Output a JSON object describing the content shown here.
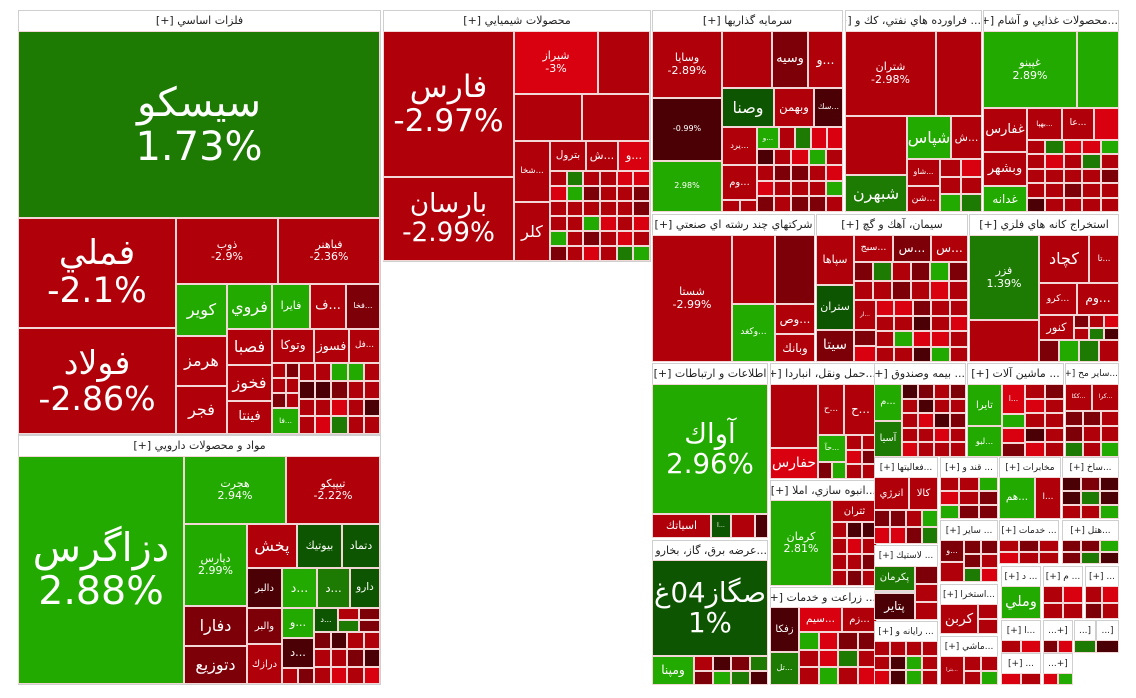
{
  "colors": {
    "r": "#b0000a",
    "R": "#d9000f",
    "d": "#7d0008",
    "v": "#4a0004",
    "g": "#22aa00",
    "G": "#1d7b04",
    "D": "#0d5500"
  },
  "sectors": [
    {
      "title": "فلزات اساسي [+]",
      "tiles": [
        {
          "n": "سيسكو",
          "c": "1.73%",
          "k": "G"
        },
        {
          "n": "فملي",
          "c": "-2.1%",
          "k": "r"
        },
        {
          "n": "فولاد",
          "c": "-2.86%",
          "k": "r"
        },
        {
          "n": "ذوب",
          "c": "-2.9%",
          "k": "r"
        },
        {
          "n": "فباهنر",
          "c": "-2.36%",
          "k": "r"
        },
        {
          "n": "كوير",
          "k": "g"
        },
        {
          "n": "فروي",
          "k": "g"
        },
        {
          "n": "فايرا",
          "k": "g"
        },
        {
          "n": "...ف",
          "k": "r"
        },
        {
          "n": "...فخا",
          "k": "d"
        },
        {
          "n": "هرمز",
          "k": "r"
        },
        {
          "n": "فجر",
          "k": "r"
        },
        {
          "n": "فصبا",
          "k": "r"
        },
        {
          "n": "فخوز",
          "k": "r"
        },
        {
          "n": "فينتا",
          "k": "r"
        },
        {
          "n": "وتوكا",
          "k": "r"
        },
        {
          "n": "فسوز",
          "k": "r"
        },
        {
          "n": "...فل",
          "k": "r"
        },
        {
          "n": "...فا",
          "k": "g"
        }
      ]
    },
    {
      "title": "مواد و محصولات دارويي [+]",
      "tiles": [
        {
          "n": "دزاگرس",
          "c": "2.88%",
          "k": "g"
        },
        {
          "n": "هجرت",
          "c": "2.94%",
          "k": "g"
        },
        {
          "n": "تيپيكو",
          "c": "-2.22%",
          "k": "r"
        },
        {
          "n": "دپارس",
          "c": "2.99%",
          "k": "g"
        },
        {
          "n": "پخش",
          "k": "r"
        },
        {
          "n": "بيوتيك",
          "k": "D"
        },
        {
          "n": "دتماد",
          "k": "D"
        },
        {
          "n": "دالبر",
          "k": "v"
        },
        {
          "n": "...د",
          "k": "g"
        },
        {
          "n": "...د",
          "k": "G"
        },
        {
          "n": "دارو",
          "k": "D"
        },
        {
          "n": "دفارا",
          "k": "d"
        },
        {
          "n": "دتوزيع",
          "k": "d"
        },
        {
          "n": "والبر",
          "k": "d"
        },
        {
          "n": "درازك",
          "k": "r"
        },
        {
          "n": "...و",
          "k": "g"
        },
        {
          "n": "...د",
          "k": "D"
        },
        {
          "n": "...د",
          "k": "v"
        }
      ]
    },
    {
      "title": "محصولات شيميايي [+]",
      "tiles": [
        {
          "n": "فارس",
          "c": "-2.97%",
          "k": "r"
        },
        {
          "n": "بارسان",
          "c": "-2.99%",
          "k": "r"
        },
        {
          "n": "شيراز",
          "c": "-3%",
          "k": "R"
        },
        {
          "n": "",
          "k": "r"
        },
        {
          "n": "",
          "k": "r"
        },
        {
          "n": "",
          "k": "r"
        },
        {
          "n": "...شخا",
          "k": "r"
        },
        {
          "n": "كلر",
          "k": "r"
        },
        {
          "n": "بترول",
          "k": "r"
        },
        {
          "n": "...ش",
          "k": "r"
        },
        {
          "n": "...و",
          "k": "R"
        }
      ]
    },
    {
      "title": "سرمايه گذاريها [+]",
      "tiles": [
        {
          "n": "وسايا",
          "c": "-2.89%",
          "k": "r"
        },
        {
          "n": "",
          "c": "-0.99%",
          "k": "v"
        },
        {
          "n": "",
          "c": "2.98%",
          "k": "g"
        },
        {
          "n": "",
          "k": "r"
        },
        {
          "n": "وسيه",
          "k": "d"
        },
        {
          "n": "...و",
          "k": "r"
        },
        {
          "n": "وصنا",
          "k": "D"
        },
        {
          "n": "وبهمن",
          "k": "r"
        },
        {
          "n": "...سك",
          "k": "v"
        },
        {
          "n": "...يرد",
          "k": "r"
        },
        {
          "n": "...و",
          "k": "g"
        },
        {
          "n": "...وم",
          "k": "r"
        }
      ]
    },
    {
      "title": "... فراورده هاي نفتي، كك و [+]",
      "tiles": [
        {
          "n": "شتران",
          "c": "-2.98%",
          "k": "r"
        },
        {
          "n": "",
          "k": "r"
        },
        {
          "n": "",
          "k": "r"
        },
        {
          "n": "شپاس",
          "k": "g"
        },
        {
          "n": "...ش",
          "k": "r"
        },
        {
          "n": "شبهرن",
          "k": "G"
        },
        {
          "n": "...شاو",
          "k": "r"
        },
        {
          "n": "...شن",
          "k": "r"
        }
      ]
    },
    {
      "title": "...محصولات غذايي و آشام [+]",
      "tiles": [
        {
          "n": "غپينو",
          "c": "2.89%",
          "k": "g"
        },
        {
          "n": "",
          "k": "g"
        },
        {
          "n": "غفارس",
          "k": "r"
        },
        {
          "n": "وبشهر",
          "k": "r"
        },
        {
          "n": "غدانه",
          "k": "g"
        },
        {
          "n": "...بهپا",
          "k": "r"
        },
        {
          "n": "...عا",
          "k": "r"
        },
        {
          "n": "",
          "k": "R"
        }
      ]
    },
    {
      "title": "شركتهاي چند رشته اي صنعتي [+]",
      "tiles": [
        {
          "n": "شستا",
          "c": "-2.99%",
          "k": "r"
        },
        {
          "n": "",
          "k": "r"
        },
        {
          "n": "",
          "k": "d"
        },
        {
          "n": "...وكغد",
          "k": "g"
        },
        {
          "n": "...وص",
          "k": "r"
        },
        {
          "n": "وبانك",
          "k": "r"
        }
      ]
    },
    {
      "title": "سيمان، آهك و گچ [+]",
      "tiles": [
        {
          "n": "سپاها",
          "k": "r"
        },
        {
          "n": "ستران",
          "k": "D"
        },
        {
          "n": "سيتا",
          "k": "d"
        },
        {
          "n": "...سبج",
          "k": "r"
        },
        {
          "n": "...س",
          "k": "d"
        },
        {
          "n": "...س",
          "k": "r"
        },
        {
          "n": "...ار",
          "k": "r"
        }
      ]
    },
    {
      "title": "استخراج كانه هاي فلزي [+]",
      "tiles": [
        {
          "n": "فزر",
          "c": "1.39%",
          "k": "G"
        },
        {
          "n": "",
          "k": "r"
        },
        {
          "n": "كچاد",
          "k": "r"
        },
        {
          "n": "...تا",
          "k": "r"
        },
        {
          "n": "...كرو",
          "k": "r"
        },
        {
          "n": "...وم",
          "k": "r"
        },
        {
          "n": "كنور",
          "k": "r"
        }
      ]
    },
    {
      "title": "اطلاعات و ارتباطات [+]",
      "tiles": [
        {
          "n": "آواك",
          "c": "2.96%",
          "k": "g"
        },
        {
          "n": "اسياتك",
          "k": "r"
        },
        {
          "n": "...ا",
          "k": "D"
        },
        {
          "n": "",
          "k": "r"
        },
        {
          "n": "",
          "k": "v"
        }
      ]
    },
    {
      "title": "...عرضه برق، گاز، بخارو [+]",
      "tiles": [
        {
          "n": "صگاز04غ",
          "c": "1%",
          "k": "D"
        },
        {
          "n": "ومپنا",
          "k": "g"
        }
      ]
    },
    {
      "title": "...حمل ونقل، انباردا [+]",
      "tiles": [
        {
          "n": "",
          "k": "r"
        },
        {
          "n": "...ح",
          "k": "r"
        },
        {
          "n": "...ح",
          "k": "r"
        },
        {
          "n": "حفارس",
          "k": "R"
        },
        {
          "n": "...حآ",
          "k": "g"
        }
      ]
    },
    {
      "title": "...انبوه سازي، املا [+]",
      "tiles": [
        {
          "n": "كرمان",
          "c": "2.81%",
          "k": "g"
        },
        {
          "n": "ثتران",
          "k": "r"
        }
      ]
    },
    {
      "title": "... زراعت و خدمات [+]",
      "tiles": [
        {
          "n": "زفكا",
          "k": "v"
        },
        {
          "n": "...تل",
          "k": "G"
        },
        {
          "n": "...سيم",
          "k": "R"
        },
        {
          "n": "...زم",
          "k": "r"
        }
      ]
    },
    {
      "title": "... بيمه وصندوق [+]",
      "tiles": [
        {
          "n": "...م",
          "k": "g"
        },
        {
          "n": "آسيا",
          "k": "G"
        }
      ]
    },
    {
      "title": "... ماشين آلات [+]",
      "tiles": [
        {
          "n": "تايرا",
          "k": "g"
        },
        {
          "n": "...لبو",
          "k": "g"
        },
        {
          "n": "...ا",
          "k": "R"
        }
      ]
    },
    {
      "title": "...ساير مح [+]",
      "tiles": [
        {
          "n": "...ككا",
          "k": "r"
        },
        {
          "n": "...كرا",
          "k": "r"
        }
      ]
    },
    {
      "title": "...فعاليتها [+]",
      "tiles": [
        {
          "n": "انرژي",
          "k": "r"
        },
        {
          "n": "كالا",
          "k": "r"
        }
      ]
    },
    {
      "title": "... قند و [+]",
      "tiles": []
    },
    {
      "title": "مخابرات [+]",
      "tiles": [
        {
          "n": "...هم",
          "k": "g"
        },
        {
          "n": "...ا",
          "k": "r"
        }
      ]
    },
    {
      "title": "...ساخ [+]",
      "tiles": []
    },
    {
      "title": "... لاستيك [+]",
      "tiles": [
        {
          "n": "پكرمان",
          "k": "G"
        },
        {
          "n": "پتاير",
          "k": "v"
        }
      ]
    },
    {
      "title": "... ساير [+]",
      "tiles": [
        {
          "n": "...و",
          "k": "d"
        }
      ]
    },
    {
      "title": "... خدمات [+]",
      "tiles": []
    },
    {
      "title": "...هتل [+]",
      "tiles": []
    },
    {
      "title": "...استخرا [+]",
      "tiles": [
        {
          "n": "كربن",
          "k": "r"
        }
      ]
    },
    {
      "title": "... رايانه و [+]",
      "tiles": []
    },
    {
      "title": "...ماشي [+]",
      "tiles": [
        {
          "n": "...بترا",
          "k": "r"
        }
      ]
    },
    {
      "title": "... د [+]",
      "tiles": [
        {
          "n": "وملي",
          "k": "g"
        }
      ]
    },
    {
      "title": "... م [+]",
      "tiles": []
    },
    {
      "title": "... [+]",
      "tiles": []
    },
    {
      "title": "...ا [+]",
      "tiles": []
    },
    {
      "title": "[+...",
      "tiles": []
    },
    {
      "title": "[...",
      "tiles": []
    },
    {
      "title": "[...",
      "tiles": []
    },
    {
      "title": "... [+]",
      "tiles": []
    },
    {
      "title": "[+...",
      "tiles": []
    }
  ]
}
